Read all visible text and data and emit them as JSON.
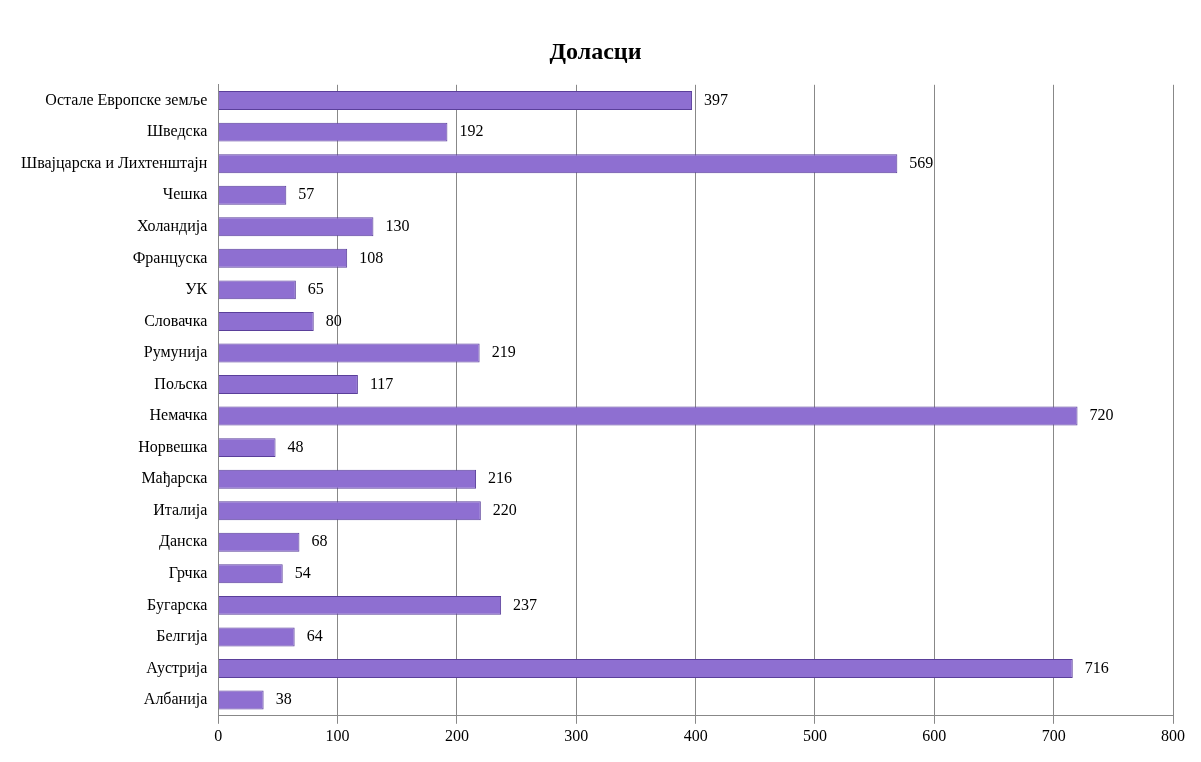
{
  "chart_data": {
    "type": "bar",
    "orientation": "horizontal",
    "title": "Доласци",
    "categories": [
      "Остале Европске земље",
      "Шведска",
      "Швајцарска и Лихтенштајн",
      "Чешка",
      "Холандија",
      "Француска",
      "УК",
      "Словачка",
      "Румунија",
      "Пољска",
      "Немачка",
      "Норвешка",
      "Мађарска",
      "Италија",
      "Данска",
      "Грчка",
      "Бугарска",
      "Белгија",
      "Аустрија",
      "Албанија"
    ],
    "values": [
      397,
      192,
      569,
      57,
      130,
      108,
      65,
      80,
      219,
      117,
      720,
      48,
      216,
      220,
      68,
      54,
      237,
      64,
      716,
      38
    ],
    "color": "#8e6fd1",
    "xlim": [
      0,
      800
    ],
    "xticks": [
      0,
      100,
      200,
      300,
      400,
      500,
      600,
      700,
      800
    ],
    "grid": "x",
    "data_labels": true
  }
}
